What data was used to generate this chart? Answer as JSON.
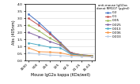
{
  "xlabel": "Mouse IgG2a kappa (KDa/well)",
  "ylabel": "Abs (405nm)",
  "legend_title": "anti-mouse IgG2as\ndonat RM107 (µg/ml)",
  "x_labels": [
    "1000",
    "500",
    "250",
    "125",
    "62.5",
    "31.25",
    "15.63"
  ],
  "series": [
    {
      "label": "0.2",
      "color": "#4472C4",
      "values": [
        3.3,
        2.7,
        2.0,
        1.3,
        0.55,
        0.4,
        0.35
      ]
    },
    {
      "label": "0.1",
      "color": "#C0504D",
      "values": [
        3.0,
        2.5,
        1.9,
        1.25,
        0.55,
        0.4,
        0.35
      ]
    },
    {
      "label": "0.05",
      "color": "#9BBB59",
      "values": [
        2.5,
        2.1,
        1.6,
        1.2,
        0.5,
        0.38,
        0.32
      ]
    },
    {
      "label": "0.025",
      "color": "#8064A2",
      "values": [
        2.0,
        1.7,
        1.35,
        1.1,
        0.48,
        0.35,
        0.28
      ]
    },
    {
      "label": "0.013",
      "color": "#4BACC6",
      "values": [
        1.25,
        1.1,
        0.95,
        0.9,
        0.45,
        0.35,
        0.28
      ]
    },
    {
      "label": "0.006",
      "color": "#F79646",
      "values": [
        0.9,
        0.62,
        0.6,
        0.55,
        0.38,
        0.32,
        0.28
      ]
    },
    {
      "label": "0.003",
      "color": "#B8CCE4",
      "values": [
        0.55,
        0.45,
        0.38,
        0.35,
        0.3,
        0.28,
        0.26
      ]
    }
  ],
  "ylim": [
    0,
    4
  ],
  "yticks": [
    0,
    0.5,
    1.0,
    1.5,
    2.0,
    2.5,
    3.0,
    3.5,
    4.0
  ],
  "background_color": "#ffffff",
  "grid_color": "#d8d8d8"
}
